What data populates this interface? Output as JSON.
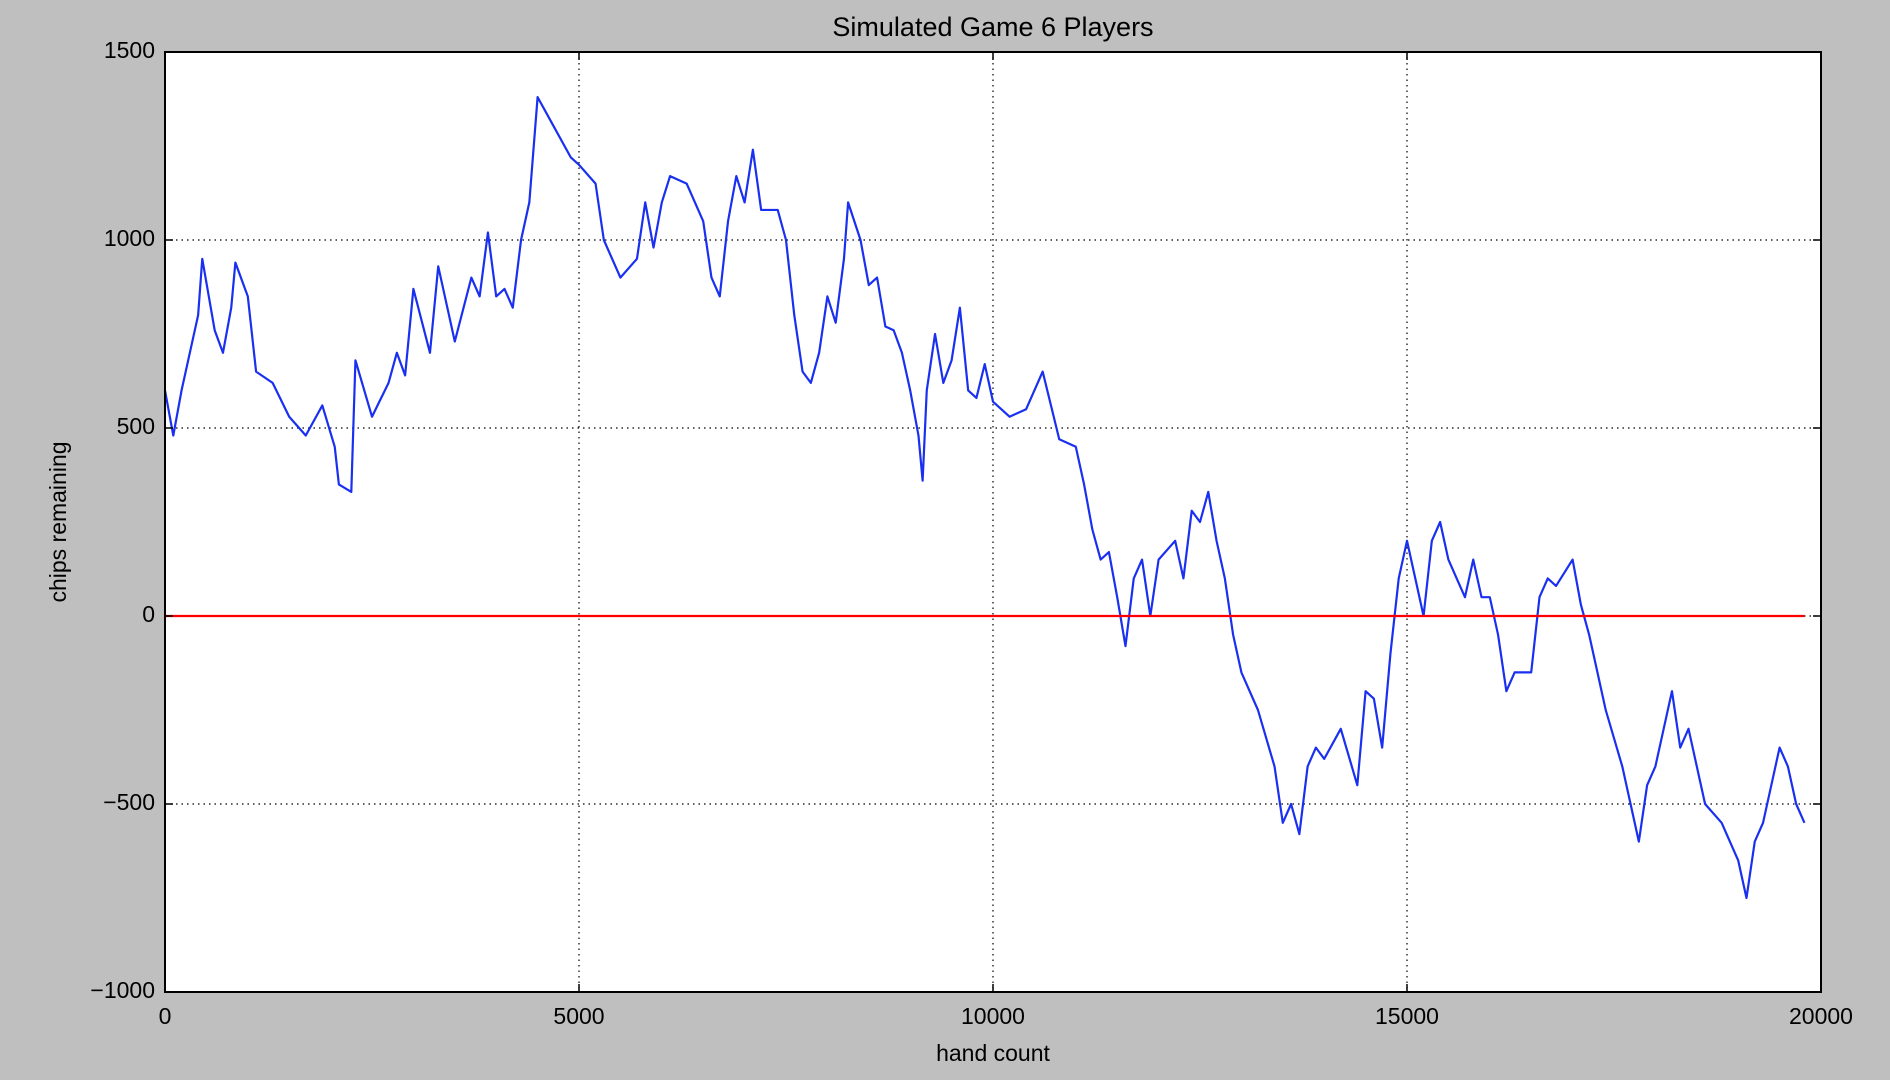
{
  "chart_data": {
    "type": "line",
    "title": "Simulated Game 6 Players",
    "xlabel": "hand count",
    "ylabel": "chips remaining",
    "xlim": [
      0,
      20000
    ],
    "ylim": [
      -1000,
      1500
    ],
    "xticks": [
      0,
      5000,
      10000,
      15000,
      20000
    ],
    "yticks": [
      {
        "value": -1000,
        "label": "−1000"
      },
      {
        "value": -500,
        "label": "−500"
      },
      0,
      500,
      1000,
      1500
    ],
    "grid": true,
    "series": [
      {
        "color": "#1a30f0",
        "x": [
          0,
          100,
          200,
          400,
          450,
          600,
          700,
          800,
          850,
          1000,
          1100,
          1300,
          1500,
          1700,
          1900,
          2050,
          2100,
          2250,
          2300,
          2500,
          2700,
          2800,
          2900,
          3000,
          3200,
          3300,
          3500,
          3700,
          3800,
          3900,
          4000,
          4100,
          4200,
          4300,
          4400,
          4500,
          4700,
          4900,
          5000,
          5200,
          5300,
          5500,
          5700,
          5800,
          5900,
          6000,
          6100,
          6300,
          6500,
          6600,
          6700,
          6800,
          6900,
          7000,
          7100,
          7200,
          7400,
          7500,
          7600,
          7700,
          7800,
          7900,
          8000,
          8100,
          8200,
          8250,
          8400,
          8500,
          8600,
          8700,
          8800,
          8900,
          9000,
          9100,
          9150,
          9200,
          9300,
          9400,
          9500,
          9600,
          9700,
          9800,
          9900,
          10000,
          10200,
          10400,
          10600,
          10800,
          11000,
          11100,
          11200,
          11300,
          11400,
          11500,
          11600,
          11700,
          11800,
          11900,
          12000,
          12200,
          12300,
          12400,
          12500,
          12600,
          12700,
          12800,
          12900,
          13000,
          13200,
          13400,
          13500,
          13600,
          13700,
          13800,
          13900,
          14000,
          14200,
          14400,
          14500,
          14600,
          14700,
          14800,
          14900,
          15000,
          15100,
          15200,
          15300,
          15400,
          15500,
          15600,
          15700,
          15800,
          15900,
          16000,
          16100,
          16200,
          16300,
          16500,
          16600,
          16700,
          16800,
          17000,
          17100,
          17200,
          17400,
          17600,
          17800,
          17900,
          18000,
          18100,
          18200,
          18300,
          18400,
          18600,
          18800,
          19000,
          19100,
          19200,
          19300,
          19400,
          19500,
          19600,
          19700,
          19800
        ],
        "values": [
          600,
          480,
          600,
          800,
          950,
          760,
          700,
          820,
          940,
          850,
          650,
          620,
          530,
          480,
          560,
          450,
          350,
          330,
          680,
          530,
          620,
          700,
          640,
          870,
          700,
          930,
          730,
          900,
          850,
          1020,
          850,
          870,
          820,
          1000,
          1100,
          1380,
          1300,
          1220,
          1200,
          1150,
          1000,
          900,
          950,
          1100,
          980,
          1100,
          1170,
          1150,
          1050,
          900,
          850,
          1050,
          1170,
          1100,
          1240,
          1080,
          1080,
          1000,
          800,
          650,
          620,
          700,
          850,
          780,
          950,
          1100,
          1000,
          880,
          900,
          770,
          760,
          700,
          600,
          480,
          360,
          600,
          750,
          620,
          680,
          820,
          600,
          580,
          670,
          570,
          530,
          550,
          650,
          470,
          450,
          350,
          230,
          150,
          170,
          50,
          -80,
          100,
          150,
          0,
          150,
          200,
          100,
          280,
          250,
          330,
          200,
          100,
          -50,
          -150,
          -250,
          -400,
          -550,
          -500,
          -580,
          -400,
          -350,
          -380,
          -300,
          -450,
          -200,
          -220,
          -350,
          -100,
          100,
          200,
          100,
          0,
          200,
          250,
          150,
          100,
          50,
          150,
          50,
          50,
          -50,
          -200,
          -150,
          -150,
          50,
          100,
          80,
          150,
          30,
          -50,
          -250,
          -400,
          -600,
          -450,
          -400,
          -300,
          -200,
          -350,
          -300,
          -500,
          -550,
          -650,
          -750,
          -600,
          -550,
          -450,
          -350,
          -400,
          -500,
          -550
        ]
      },
      {
        "color": "#ff0000",
        "x": [
          0,
          19800
        ],
        "values": [
          0,
          0
        ]
      }
    ]
  }
}
